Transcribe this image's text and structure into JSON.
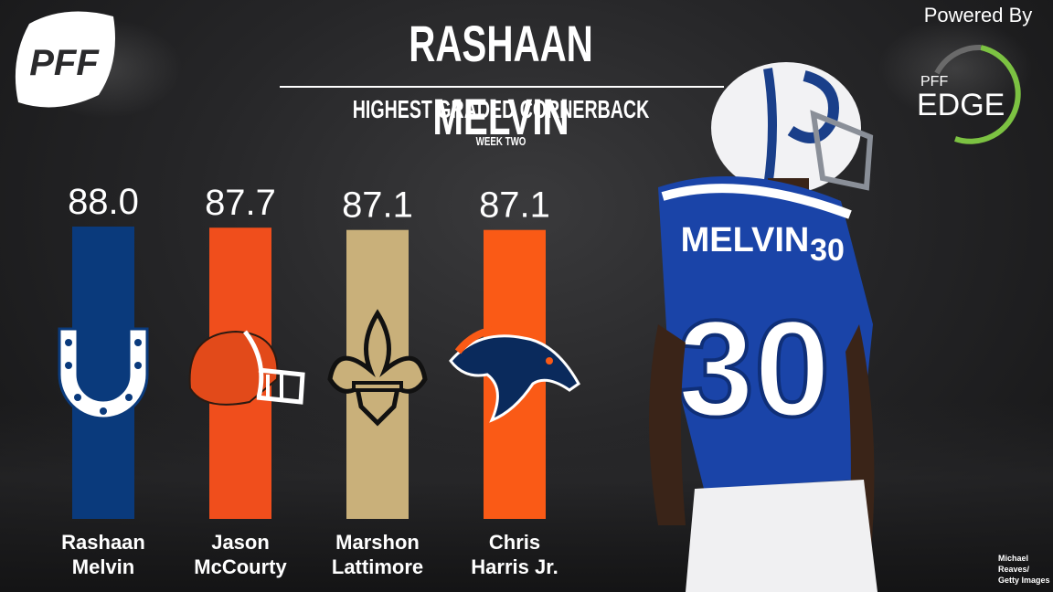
{
  "header": {
    "title": "RASHAAN MELVIN",
    "subtitle": "HIGHEST GRADED CORNERBACK",
    "week": "WEEK TWO"
  },
  "branding": {
    "logo_text": "PFF",
    "powered_by": "Powered By",
    "edge_small": "PFF",
    "edge_big": "EDGE"
  },
  "player_photo": {
    "jersey_name": "MELVIN",
    "jersey_number": "30"
  },
  "credit": {
    "line1": "Michael Reaves/",
    "line2": "Getty Images"
  },
  "chart_data": {
    "type": "bar",
    "categories": [
      "Rashaan Melvin",
      "Jason McCourty",
      "Marshon Lattimore",
      "Chris Harris Jr."
    ],
    "label_lines": [
      [
        "Rashaan",
        "Melvin"
      ],
      [
        "Jason",
        "McCourty"
      ],
      [
        "Marshon",
        "Lattimore"
      ],
      [
        "Chris",
        "Harris Jr."
      ]
    ],
    "values": [
      88.0,
      87.7,
      87.1,
      87.1
    ],
    "value_labels": [
      "88.0",
      "87.7",
      "87.1",
      "87.1"
    ],
    "team_logos": [
      "colts-horseshoe-icon",
      "browns-helmet-icon",
      "saints-fleur-de-lis-icon",
      "broncos-horse-icon"
    ],
    "colors": [
      "#0a3a7c",
      "#f04e1c",
      "#c9b07a",
      "#fa5a16"
    ]
  },
  "colors": {
    "edge_green": "#7cc242",
    "title_text": "#ffffff"
  }
}
